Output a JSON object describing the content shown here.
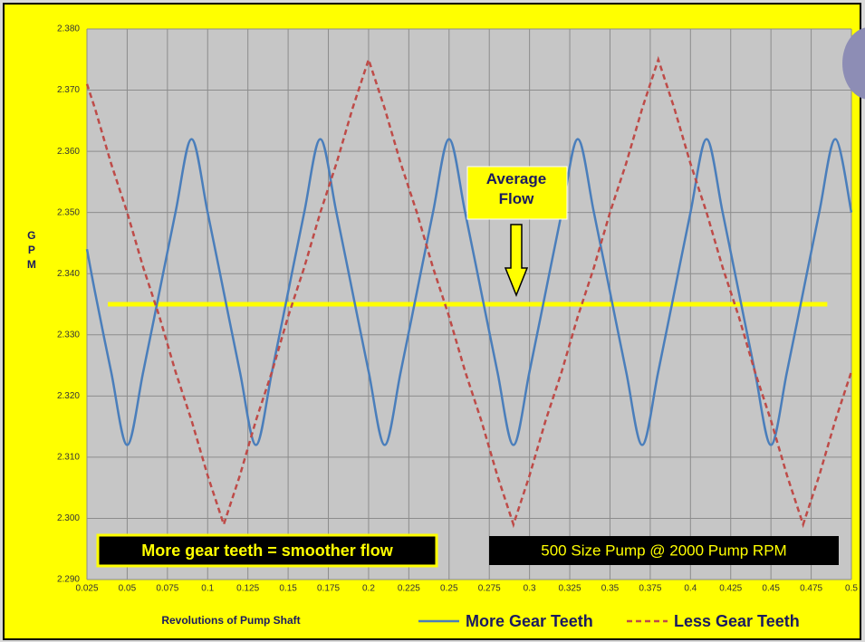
{
  "chart_data": {
    "type": "line",
    "xlabel": "Revolutions of Pump Shaft",
    "ylabel": "GPM",
    "x": [
      0.025,
      0.03,
      0.04,
      0.05,
      0.06,
      0.07,
      0.08,
      0.09,
      0.1,
      0.11,
      0.12,
      0.13,
      0.14,
      0.15,
      0.16,
      0.17,
      0.18,
      0.19,
      0.2,
      0.21,
      0.22,
      0.23,
      0.24,
      0.25,
      0.26,
      0.27,
      0.28,
      0.29,
      0.3,
      0.31,
      0.32,
      0.33,
      0.34,
      0.35,
      0.36,
      0.37,
      0.38,
      0.39,
      0.4,
      0.41,
      0.42,
      0.43,
      0.44,
      0.45,
      0.46,
      0.47,
      0.48,
      0.49,
      0.5
    ],
    "series": [
      {
        "name": "More Gear Teeth",
        "color": "#4a7ebb",
        "dash": false,
        "smooth": true,
        "values": [
          2.344,
          2.337,
          2.324,
          2.312,
          2.324,
          2.337,
          2.35,
          2.362,
          2.35,
          2.337,
          2.324,
          2.312,
          2.324,
          2.337,
          2.35,
          2.362,
          2.35,
          2.337,
          2.324,
          2.312,
          2.324,
          2.337,
          2.35,
          2.362,
          2.35,
          2.337,
          2.324,
          2.312,
          2.324,
          2.337,
          2.35,
          2.362,
          2.35,
          2.337,
          2.324,
          2.312,
          2.324,
          2.337,
          2.35,
          2.362,
          2.35,
          2.337,
          2.324,
          2.312,
          2.324,
          2.337,
          2.35,
          2.362,
          2.35
        ]
      },
      {
        "name": "Less Gear Teeth",
        "color": "#be4b48",
        "dash": true,
        "smooth": false,
        "values": [
          2.371,
          2.367,
          2.358,
          2.35,
          2.341,
          2.333,
          2.324,
          2.316,
          2.307,
          2.299,
          2.307,
          2.316,
          2.324,
          2.333,
          2.341,
          2.35,
          2.358,
          2.367,
          2.375,
          2.367,
          2.358,
          2.35,
          2.341,
          2.333,
          2.324,
          2.316,
          2.307,
          2.299,
          2.307,
          2.316,
          2.324,
          2.333,
          2.341,
          2.35,
          2.358,
          2.367,
          2.375,
          2.367,
          2.358,
          2.35,
          2.341,
          2.333,
          2.324,
          2.316,
          2.307,
          2.299,
          2.307,
          2.316,
          2.324
        ]
      }
    ],
    "average_line": {
      "value": 2.335,
      "x": [
        0.038,
        0.485
      ],
      "color": "#ffff00",
      "label": "Average\nFlow"
    },
    "annotations": [
      "More gear teeth = smoother flow",
      "500 Size Pump @ 2000 Pump RPM"
    ],
    "xlim": [
      0.025,
      0.5
    ],
    "xticks": [
      0.025,
      0.05,
      0.075,
      0.1,
      0.125,
      0.15,
      0.175,
      0.2,
      0.225,
      0.25,
      0.275,
      0.3,
      0.325,
      0.35,
      0.375,
      0.4,
      0.425,
      0.45,
      0.475,
      0.5
    ],
    "ylim": [
      2.29,
      2.38
    ],
    "yticks": [
      {
        "value": 2.29,
        "label": "2.290"
      },
      {
        "value": 2.3,
        "label": "2.300"
      },
      {
        "value": 2.31,
        "label": "2.310"
      },
      {
        "value": 2.32,
        "label": "2.320"
      },
      {
        "value": 2.33,
        "label": "2.330"
      },
      {
        "value": 2.34,
        "label": "2.340"
      },
      {
        "value": 2.35,
        "label": "2.350"
      },
      {
        "value": 2.36,
        "label": "2.360"
      },
      {
        "value": 2.37,
        "label": "2.370"
      },
      {
        "value": 2.38,
        "label": "2.380"
      }
    ],
    "grid": true,
    "legend": "bottom"
  }
}
